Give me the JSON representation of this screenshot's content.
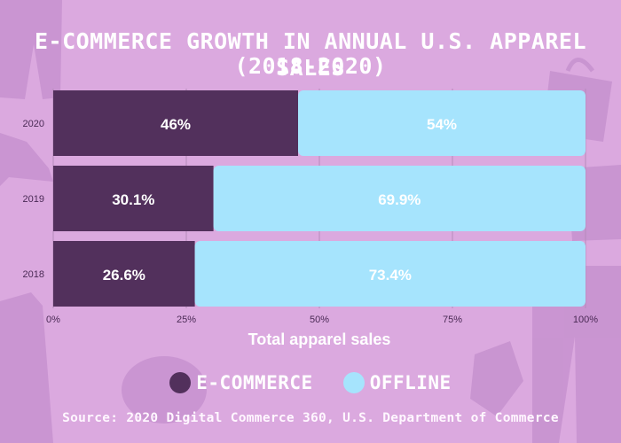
{
  "title_line1": "E-COMMERCE GROWTH IN ANNUAL U.S. APPAREL SALES",
  "title_line2": "(2018-2020)",
  "source": "Source: 2020 Digital Commerce 360, U.S. Department of Commerce",
  "colors": {
    "background": "#dba9df",
    "ecommerce": "#52305c",
    "offline": "#a6e4fd",
    "text": "#ffffff",
    "axis_text": "#4a2a55",
    "decor": "#c48fcd"
  },
  "chart_data": {
    "type": "bar",
    "orientation": "horizontal",
    "stacked": true,
    "categories": [
      "2020",
      "2019",
      "2018"
    ],
    "series": [
      {
        "name": "E-COMMERCE",
        "values": [
          46,
          30.1,
          26.6
        ],
        "labels": [
          "46%",
          "30.1%",
          "26.6%"
        ]
      },
      {
        "name": "OFFLINE",
        "values": [
          54,
          69.9,
          73.4
        ],
        "labels": [
          "54%",
          "69.9%",
          "73.4%"
        ]
      }
    ],
    "xlim": [
      0,
      100
    ],
    "xticks": [
      0,
      25,
      50,
      75,
      100
    ],
    "xtick_labels": [
      "0%",
      "25%",
      "50%",
      "75%",
      "100%"
    ],
    "xlabel": "Total  apparel sales",
    "ylabel": "",
    "grid": true,
    "legend_position": "bottom"
  }
}
